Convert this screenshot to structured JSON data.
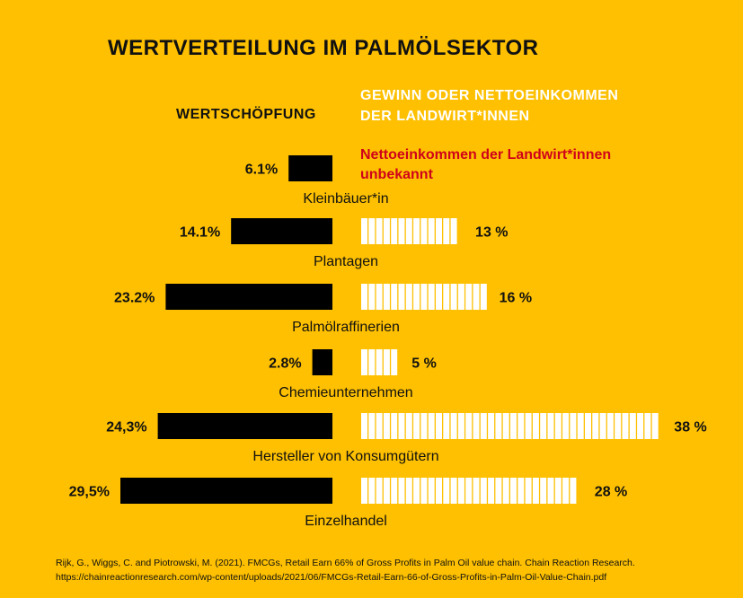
{
  "chart_data": {
    "type": "bar",
    "title": "WERTVERTEILUNG IM PALMÖLSEKTOR",
    "left_header": "WERTSCHÖPFUNG",
    "right_header": [
      "GEWINN ODER NETTOEINKOMMEN",
      "DER LANDWIRT*INNEN"
    ],
    "note": [
      "Nettoeinkommen der Landwirt*innen",
      "unbekannt"
    ],
    "categories": [
      "Kleinbäuer*in",
      "Plantagen",
      "Palmölraffinerien",
      "Chemieunternehmen",
      "Hersteller von Konsumgütern",
      "Einzelhandel"
    ],
    "series": [
      {
        "name": "WERTSCHÖPFUNG",
        "values": [
          6.1,
          14.1,
          23.2,
          2.8,
          24.3,
          29.5
        ],
        "labels": [
          "6.1%",
          "14.1%",
          "23.2%",
          "2.8%",
          "24,3%",
          "29,5%"
        ]
      },
      {
        "name": "GEWINN ODER NETTOEINKOMMEN DER LANDWIRT*INNEN",
        "values": [
          null,
          13,
          16,
          5,
          38,
          28
        ],
        "labels": [
          "",
          "13 %",
          "16 %",
          "5 %",
          "38 %",
          "28 %"
        ]
      }
    ],
    "colors": {
      "background": "#FEC000",
      "value_added": "#000000",
      "profit": "#FFFFFF",
      "note": "#D0021B"
    }
  },
  "source": [
    "Rijk, G., Wiggs, C. and Piotrowski, M. (2021). FMCGs, Retail Earn 66% of Gross Profits in Palm Oil value chain. Chain Reaction Research.",
    "https://chainreactionresearch.com/wp-content/uploads/2021/06/FMCGs-Retail-Earn-66-of-Gross-Profits-in-Palm-Oil-Value-Chain.pdf"
  ]
}
